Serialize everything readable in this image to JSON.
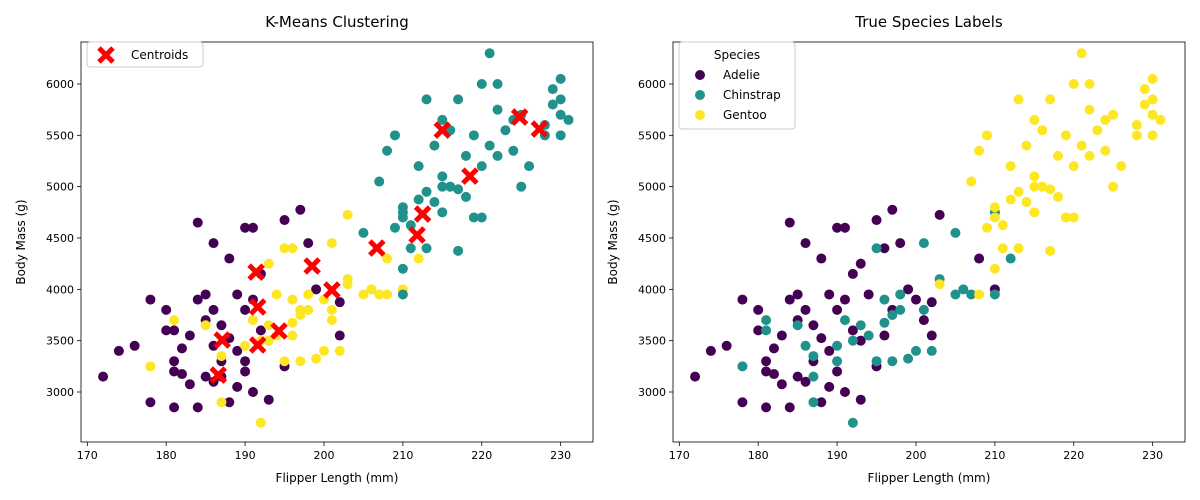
{
  "colors": {
    "purple": "#440154",
    "teal": "#21918c",
    "yellow": "#fde725",
    "centroid": "#ff0000"
  },
  "chart_data": [
    {
      "type": "scatter",
      "title": "K-Means Clustering",
      "xlabel": "Flipper Length (mm)",
      "ylabel": "Body Mass (g)",
      "xlim": [
        169.2,
        234.1
      ],
      "ylim": [
        2513,
        6409
      ],
      "xticks": [
        170,
        180,
        190,
        200,
        210,
        220,
        230
      ],
      "yticks": [
        3000,
        3500,
        4000,
        4500,
        5000,
        5500,
        6000
      ],
      "color_by": "cluster",
      "legend": {
        "placement": "top-left",
        "entries": [
          "Centroids"
        ]
      },
      "centroids": [
        [
          186.6,
          3165
        ],
        [
          187.1,
          3506
        ],
        [
          191.6,
          3458
        ],
        [
          191.6,
          3828
        ],
        [
          191.4,
          4168
        ],
        [
          194.3,
          3594
        ],
        [
          198.5,
          4227
        ],
        [
          201.0,
          3993
        ],
        [
          206.7,
          4402
        ],
        [
          211.8,
          4529
        ],
        [
          212.5,
          4733
        ],
        [
          215.0,
          5551
        ],
        [
          218.5,
          5103
        ],
        [
          224.8,
          5678
        ],
        [
          227.3,
          5561
        ]
      ]
    },
    {
      "type": "scatter",
      "title": "True Species Labels",
      "xlabel": "Flipper Length (mm)",
      "ylabel": "Body Mass (g)",
      "xlim": [
        169.2,
        234.1
      ],
      "ylim": [
        2513,
        6409
      ],
      "xticks": [
        170,
        180,
        190,
        200,
        210,
        220,
        230
      ],
      "yticks": [
        3000,
        3500,
        4000,
        4500,
        5000,
        5500,
        6000
      ],
      "color_by": "species",
      "legend": {
        "placement": "top-left",
        "title": "Species",
        "entries": [
          "Adelie",
          "Chinstrap",
          "Gentoo"
        ]
      }
    }
  ],
  "points_fields": [
    "flipper_length_mm",
    "body_mass_g",
    "cluster",
    "species"
  ],
  "points": [
    [
      172,
      3150,
      0,
      0
    ],
    [
      174,
      3400,
      0,
      0
    ],
    [
      176,
      3450,
      0,
      0
    ],
    [
      178,
      3900,
      0,
      0
    ],
    [
      178,
      2900,
      0,
      0
    ],
    [
      180,
      3800,
      0,
      0
    ],
    [
      180,
      3600,
      0,
      0
    ],
    [
      181,
      3300,
      0,
      0
    ],
    [
      181,
      3200,
      0,
      0
    ],
    [
      181,
      2850,
      0,
      0
    ],
    [
      182,
      3175,
      0,
      0
    ],
    [
      182,
      3425,
      0,
      0
    ],
    [
      183,
      3550,
      0,
      0
    ],
    [
      183,
      3075,
      0,
      0
    ],
    [
      184,
      4650,
      0,
      0
    ],
    [
      184,
      3900,
      0,
      0
    ],
    [
      184,
      2850,
      0,
      0
    ],
    [
      185,
      3950,
      0,
      0
    ],
    [
      185,
      3150,
      0,
      0
    ],
    [
      185,
      3700,
      0,
      0
    ],
    [
      186,
      4450,
      0,
      0
    ],
    [
      186,
      3800,
      0,
      0
    ],
    [
      186,
      3100,
      0,
      0
    ],
    [
      187,
      3300,
      0,
      0
    ],
    [
      187,
      3650,
      0,
      0
    ],
    [
      188,
      4300,
      0,
      0
    ],
    [
      188,
      2900,
      0,
      0
    ],
    [
      188,
      3525,
      0,
      0
    ],
    [
      189,
      3950,
      0,
      0
    ],
    [
      189,
      3050,
      0,
      0
    ],
    [
      189,
      3400,
      0,
      0
    ],
    [
      190,
      4600,
      0,
      0
    ],
    [
      190,
      3800,
      0,
      0
    ],
    [
      190,
      3200,
      0,
      0
    ],
    [
      191,
      4600,
      0,
      0
    ],
    [
      191,
      3900,
      0,
      0
    ],
    [
      191,
      3000,
      0,
      0
    ],
    [
      192,
      4150,
      0,
      0
    ],
    [
      192,
      3600,
      0,
      0
    ],
    [
      193,
      4250,
      2,
      0
    ],
    [
      193,
      3500,
      2,
      0
    ],
    [
      193,
      2925,
      0,
      0
    ],
    [
      194,
      3950,
      2,
      0
    ],
    [
      195,
      4675,
      0,
      0
    ],
    [
      195,
      3250,
      0,
      0
    ],
    [
      196,
      4400,
      2,
      0
    ],
    [
      196,
      3550,
      2,
      0
    ],
    [
      197,
      4775,
      0,
      0
    ],
    [
      197,
      3800,
      2,
      0
    ],
    [
      198,
      4450,
      0,
      0
    ],
    [
      199,
      4000,
      0,
      0
    ],
    [
      200,
      3900,
      2,
      0
    ],
    [
      201,
      3700,
      2,
      0
    ],
    [
      202,
      3875,
      0,
      0
    ],
    [
      202,
      3550,
      0,
      0
    ],
    [
      203,
      4725,
      2,
      0
    ],
    [
      208,
      4300,
      2,
      0
    ],
    [
      210,
      4000,
      2,
      0
    ],
    [
      178,
      3250,
      2,
      1
    ],
    [
      181,
      3700,
      2,
      1
    ],
    [
      181,
      3600,
      0,
      1
    ],
    [
      185,
      3650,
      2,
      1
    ],
    [
      186,
      3450,
      0,
      1
    ],
    [
      187,
      3350,
      2,
      1
    ],
    [
      187,
      3150,
      0,
      1
    ],
    [
      187,
      2900,
      2,
      1
    ],
    [
      190,
      3450,
      2,
      1
    ],
    [
      190,
      3300,
      0,
      1
    ],
    [
      191,
      3700,
      2,
      1
    ],
    [
      192,
      2700,
      2,
      1
    ],
    [
      192,
      3500,
      2,
      1
    ],
    [
      193,
      3650,
      2,
      1
    ],
    [
      194,
      3550,
      2,
      1
    ],
    [
      195,
      4400,
      2,
      1
    ],
    [
      195,
      3300,
      2,
      1
    ],
    [
      196,
      3900,
      2,
      1
    ],
    [
      196,
      3675,
      2,
      1
    ],
    [
      197,
      3300,
      2,
      1
    ],
    [
      197,
      3750,
      2,
      1
    ],
    [
      198,
      3950,
      2,
      1
    ],
    [
      198,
      3800,
      2,
      1
    ],
    [
      199,
      3325,
      2,
      1
    ],
    [
      200,
      3400,
      2,
      1
    ],
    [
      201,
      4450,
      2,
      1
    ],
    [
      201,
      3800,
      2,
      1
    ],
    [
      202,
      3400,
      2,
      1
    ],
    [
      203,
      4100,
      2,
      1
    ],
    [
      205,
      4550,
      1,
      1
    ],
    [
      205,
      3950,
      2,
      1
    ],
    [
      206,
      4000,
      2,
      1
    ],
    [
      207,
      3950,
      2,
      1
    ],
    [
      210,
      4750,
      1,
      1
    ],
    [
      210,
      3950,
      1,
      1
    ],
    [
      212,
      4300,
      2,
      1
    ],
    [
      203,
      4050,
      2,
      2
    ],
    [
      207,
      5050,
      1,
      2
    ],
    [
      208,
      3950,
      2,
      2
    ],
    [
      208,
      5350,
      1,
      2
    ],
    [
      209,
      4600,
      1,
      2
    ],
    [
      209,
      5500,
      1,
      2
    ],
    [
      210,
      4200,
      1,
      2
    ],
    [
      210,
      4700,
      1,
      2
    ],
    [
      210,
      4800,
      1,
      2
    ],
    [
      211,
      4625,
      1,
      2
    ],
    [
      211,
      4400,
      1,
      2
    ],
    [
      212,
      4875,
      1,
      2
    ],
    [
      212,
      5200,
      1,
      2
    ],
    [
      213,
      4950,
      1,
      2
    ],
    [
      213,
      5850,
      1,
      2
    ],
    [
      213,
      4400,
      1,
      2
    ],
    [
      214,
      4850,
      1,
      2
    ],
    [
      214,
      5400,
      1,
      2
    ],
    [
      215,
      5000,
      1,
      2
    ],
    [
      215,
      5100,
      1,
      2
    ],
    [
      215,
      5650,
      1,
      2
    ],
    [
      215,
      4750,
      1,
      2
    ],
    [
      216,
      5000,
      1,
      2
    ],
    [
      216,
      5550,
      1,
      2
    ],
    [
      217,
      4375,
      1,
      2
    ],
    [
      217,
      5850,
      1,
      2
    ],
    [
      217,
      4975,
      1,
      2
    ],
    [
      218,
      5300,
      1,
      2
    ],
    [
      218,
      4900,
      1,
      2
    ],
    [
      219,
      5500,
      1,
      2
    ],
    [
      219,
      4700,
      1,
      2
    ],
    [
      220,
      5200,
      1,
      2
    ],
    [
      220,
      6000,
      1,
      2
    ],
    [
      220,
      4700,
      1,
      2
    ],
    [
      221,
      5400,
      1,
      2
    ],
    [
      221,
      6300,
      1,
      2
    ],
    [
      222,
      5750,
      1,
      2
    ],
    [
      222,
      5300,
      1,
      2
    ],
    [
      222,
      6000,
      1,
      2
    ],
    [
      223,
      5550,
      1,
      2
    ],
    [
      224,
      5650,
      1,
      2
    ],
    [
      224,
      5350,
      1,
      2
    ],
    [
      225,
      5000,
      1,
      2
    ],
    [
      225,
      5700,
      1,
      2
    ],
    [
      226,
      5200,
      1,
      2
    ],
    [
      228,
      5500,
      1,
      2
    ],
    [
      228,
      5600,
      1,
      2
    ],
    [
      229,
      5950,
      1,
      2
    ],
    [
      229,
      5800,
      1,
      2
    ],
    [
      230,
      5850,
      1,
      2
    ],
    [
      230,
      6050,
      1,
      2
    ],
    [
      230,
      5700,
      1,
      2
    ],
    [
      230,
      5500,
      1,
      2
    ],
    [
      231,
      5650,
      1,
      2
    ]
  ]
}
